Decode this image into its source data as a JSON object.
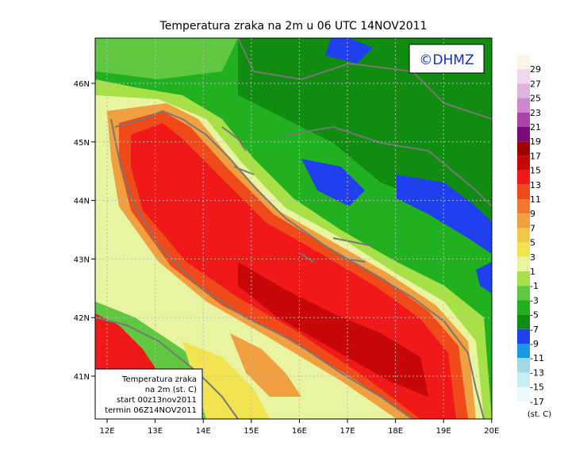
{
  "title": "Temperatura zraka na 2m u 06 UTC 14NOV2011",
  "copyright": "©DHMZ",
  "lat_ticks": [
    "46N",
    "45N",
    "44N",
    "43N",
    "42N",
    "41N"
  ],
  "lon_ticks": [
    "12E",
    "13E",
    "14E",
    "15E",
    "16E",
    "17E",
    "18E",
    "19E",
    "20E"
  ],
  "info_box": [
    "Temperatura zraka",
    "na 2m (st. C)",
    "start 00z13nov2011",
    "termin 06Z14NOV2011"
  ],
  "colorbar": {
    "unit": "(st. C)",
    "levels": [
      {
        "label": "29",
        "color": "#fdf3e6"
      },
      {
        "label": "27",
        "color": "#eed8ee"
      },
      {
        "label": "25",
        "color": "#dcb4dc"
      },
      {
        "label": "23",
        "color": "#cc88cc"
      },
      {
        "label": "21",
        "color": "#aa44aa"
      },
      {
        "label": "19",
        "color": "#7a0a7a"
      },
      {
        "label": "17",
        "color": "#a00000"
      },
      {
        "label": "15",
        "color": "#c80808"
      },
      {
        "label": "13",
        "color": "#f01818"
      },
      {
        "label": "11",
        "color": "#f04a1a"
      },
      {
        "label": "9",
        "color": "#f07830"
      },
      {
        "label": "7",
        "color": "#f0a040"
      },
      {
        "label": "5",
        "color": "#f0c848"
      },
      {
        "label": "3",
        "color": "#f2e450"
      },
      {
        "label": "1",
        "color": "#e8f4a0"
      },
      {
        "label": "-1",
        "color": "#a8e048"
      },
      {
        "label": "-3",
        "color": "#60c840"
      },
      {
        "label": "-5",
        "color": "#20b020"
      },
      {
        "label": "-7",
        "color": "#108c10"
      },
      {
        "label": "-9",
        "color": "#2040f0"
      },
      {
        "label": "-11",
        "color": "#1898e0"
      },
      {
        "label": "-13",
        "color": "#a0d8e8"
      },
      {
        "label": "-15",
        "color": "#c8eef4"
      },
      {
        "label": "-17",
        "color": "#e8fafa"
      }
    ]
  }
}
